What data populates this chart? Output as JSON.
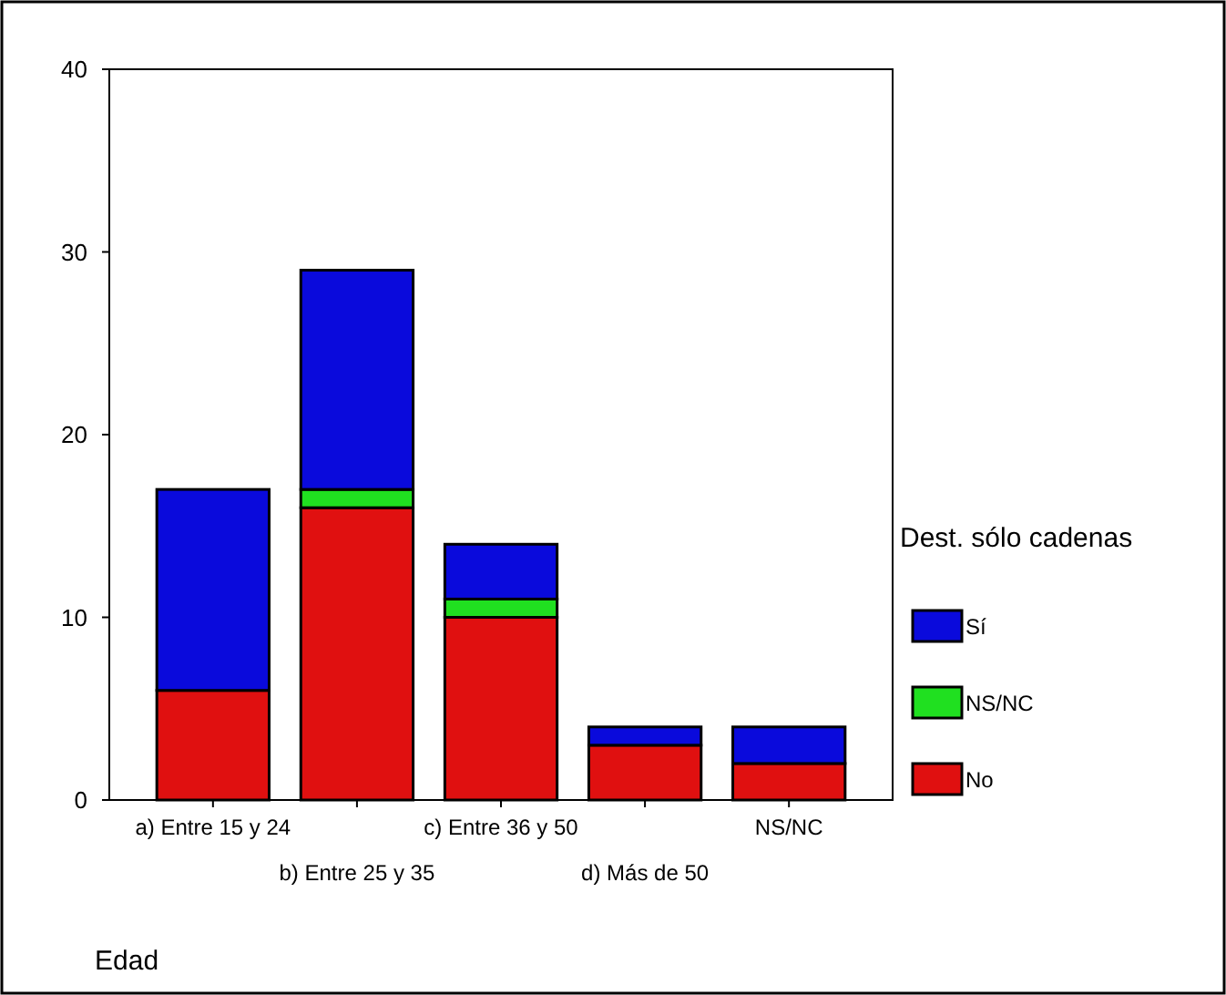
{
  "chart_data": {
    "type": "bar",
    "stacked": true,
    "xlabel": "Edad",
    "legend_title": "Dest. sólo cadenas",
    "legend": "right",
    "categories": [
      "a) Entre 15 y 24",
      "b) Entre 25 y 35",
      "c) Entre 36 y 50",
      "d) Más de 50",
      "NS/NC"
    ],
    "series": [
      {
        "name": "No",
        "color": "#e01010",
        "values": [
          6,
          16,
          10,
          3,
          2
        ]
      },
      {
        "name": "NS/NC",
        "color": "#20e020",
        "values": [
          0,
          1,
          1,
          0,
          0
        ]
      },
      {
        "name": "Sí",
        "color": "#0a0adc",
        "values": [
          11,
          12,
          3,
          1,
          2
        ]
      }
    ],
    "ylim": [
      0,
      40
    ],
    "yticks": [
      0,
      10,
      20,
      30,
      40
    ],
    "grid": false
  }
}
